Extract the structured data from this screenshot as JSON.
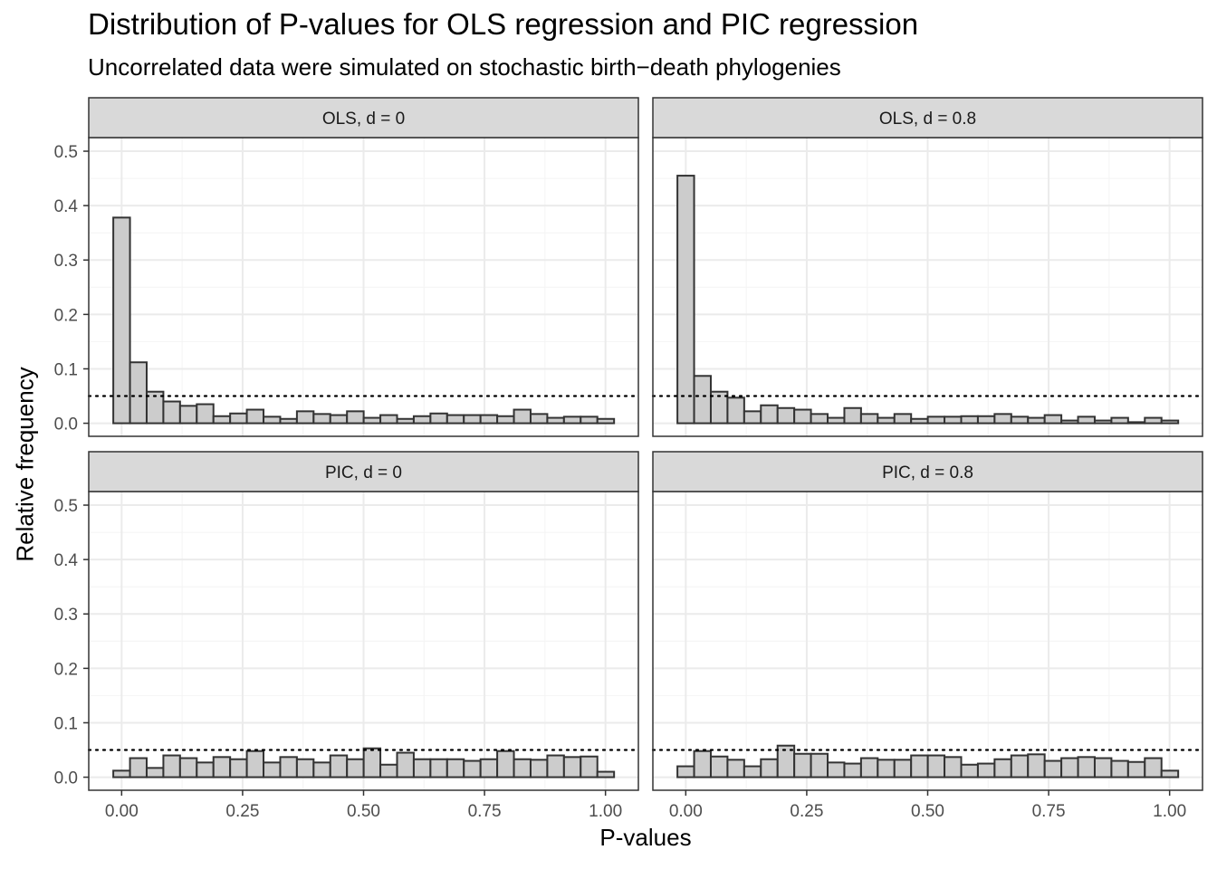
{
  "header": {
    "title": "Distribution of P-values for OLS regression and PIC regression",
    "subtitle": "Uncorrelated data were simulated on stochastic birth−death phylogenies"
  },
  "axes": {
    "xlabel": "P-values",
    "ylabel": "Relative frequency"
  },
  "colors": {
    "bar_fill": "#cccccc",
    "bar_stroke": "#333333",
    "strip_fill": "#d9d9d9",
    "grid_major": "#ebebeb",
    "panel_border": "#333333"
  },
  "chart_data": {
    "type": "bar",
    "chart_kind": "faceted histogram",
    "x_ticks": [
      "0.00",
      "0.25",
      "0.50",
      "0.75",
      "1.00"
    ],
    "y_ticks": [
      "0.0",
      "0.1",
      "0.2",
      "0.3",
      "0.4",
      "0.5"
    ],
    "xlim": [
      -0.068,
      1.068
    ],
    "ylim": [
      -0.024,
      0.525
    ],
    "bin_width": 0.0345,
    "bin_centers_start": 0.0,
    "reference_line": {
      "y": 0.05,
      "style": "dotted"
    },
    "grid": true,
    "facets": [
      {
        "label": "OLS, d = 0",
        "values": [
          0.378,
          0.112,
          0.058,
          0.04,
          0.032,
          0.035,
          0.013,
          0.018,
          0.025,
          0.012,
          0.008,
          0.022,
          0.017,
          0.015,
          0.022,
          0.01,
          0.015,
          0.008,
          0.013,
          0.018,
          0.015,
          0.015,
          0.015,
          0.013,
          0.025,
          0.017,
          0.01,
          0.012,
          0.012,
          0.008
        ]
      },
      {
        "label": "OLS, d = 0.8",
        "values": [
          0.455,
          0.087,
          0.058,
          0.047,
          0.022,
          0.033,
          0.028,
          0.025,
          0.017,
          0.01,
          0.028,
          0.017,
          0.01,
          0.017,
          0.008,
          0.012,
          0.012,
          0.013,
          0.013,
          0.017,
          0.012,
          0.01,
          0.015,
          0.005,
          0.012,
          0.005,
          0.01,
          0.002,
          0.01,
          0.005
        ]
      },
      {
        "label": "PIC, d = 0",
        "values": [
          0.012,
          0.035,
          0.017,
          0.04,
          0.035,
          0.027,
          0.037,
          0.033,
          0.048,
          0.027,
          0.037,
          0.033,
          0.027,
          0.04,
          0.033,
          0.053,
          0.023,
          0.045,
          0.033,
          0.033,
          0.033,
          0.03,
          0.033,
          0.048,
          0.033,
          0.032,
          0.04,
          0.037,
          0.038,
          0.01
        ]
      },
      {
        "label": "PIC, d = 0.8",
        "values": [
          0.02,
          0.048,
          0.038,
          0.032,
          0.02,
          0.033,
          0.058,
          0.043,
          0.043,
          0.027,
          0.025,
          0.035,
          0.032,
          0.032,
          0.04,
          0.04,
          0.037,
          0.023,
          0.025,
          0.033,
          0.04,
          0.042,
          0.03,
          0.035,
          0.037,
          0.035,
          0.03,
          0.028,
          0.035,
          0.012
        ]
      }
    ]
  }
}
